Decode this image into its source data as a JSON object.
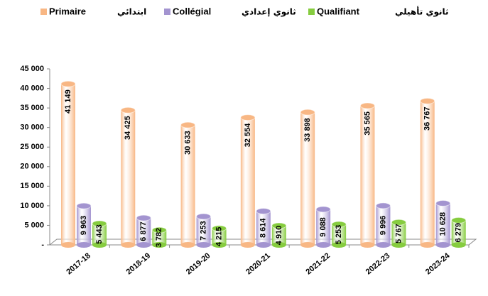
{
  "chart_data": {
    "type": "bar",
    "categories": [
      "2017-18",
      "2018-19",
      "2019-20",
      "2020-21",
      "2021-22",
      "2022-23",
      "2023-24"
    ],
    "series": [
      {
        "name": "Primaire",
        "name_ar": "ابتدائي",
        "color": "#f8b784",
        "values": [
          41149,
          34425,
          30633,
          32554,
          33898,
          35565,
          36767
        ],
        "value_labels": [
          "41 149",
          "34 425",
          "30 633",
          "32 554",
          "33 898",
          "35 565",
          "36 767"
        ]
      },
      {
        "name": "Collégial",
        "name_ar": "ثانوي إعدادي",
        "color": "#a394d0",
        "values": [
          9963,
          6877,
          7253,
          8614,
          9088,
          9996,
          10628
        ],
        "value_labels": [
          "9 963",
          "6 877",
          "7 253",
          "8 614",
          "9 088",
          "9 996",
          "10 628"
        ]
      },
      {
        "name": "Qualifiant",
        "name_ar": "ثانوي تأهيلي",
        "color": "#86cc3f",
        "values": [
          5443,
          3782,
          4215,
          4910,
          5253,
          5767,
          6279
        ],
        "value_labels": [
          "5 443",
          "3 782",
          "4 215",
          "4 910",
          "5 253",
          "5 767",
          "6 279"
        ]
      }
    ],
    "ylim": [
      0,
      45000
    ],
    "yticks": [
      {
        "value": 0,
        "label": "-"
      },
      {
        "value": 5000,
        "label": "5 000"
      },
      {
        "value": 10000,
        "label": "10 000"
      },
      {
        "value": 15000,
        "label": "15 000"
      },
      {
        "value": 20000,
        "label": "20 000"
      },
      {
        "value": 25000,
        "label": "25 000"
      },
      {
        "value": 30000,
        "label": "30 000"
      },
      {
        "value": 35000,
        "label": "35 000"
      },
      {
        "value": 40000,
        "label": "40 000"
      },
      {
        "value": 45000,
        "label": "45 000"
      }
    ],
    "grid": false
  }
}
